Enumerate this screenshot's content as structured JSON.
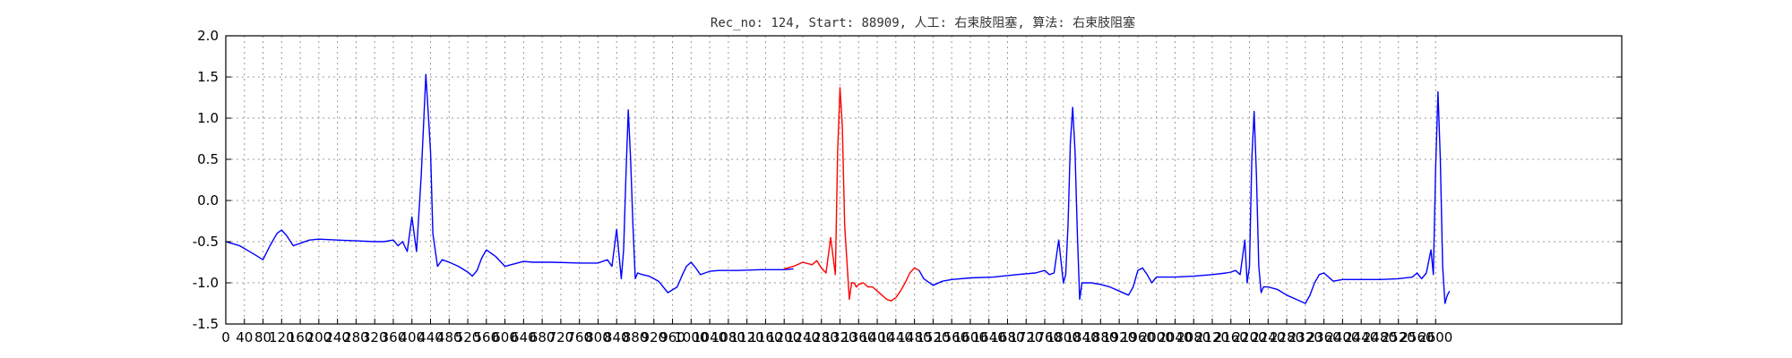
{
  "chart_data": {
    "type": "line",
    "title": "Rec_no: 124, Start: 88909, 人工: 右束肢阻塞, 算法: 右束肢阻塞",
    "xlabel": "",
    "ylabel": "",
    "xlim": [
      0,
      3000
    ],
    "ylim": [
      -1.5,
      2.0
    ],
    "grid": true,
    "yticks": [
      2.0,
      1.5,
      1.0,
      0.5,
      0.0,
      -0.5,
      -1.0,
      -1.5
    ],
    "ytick_labels": [
      "2.0",
      "1.5",
      "1.0",
      "0.5",
      "0.0",
      "-0.5",
      "-1.0",
      "-1.5"
    ],
    "xticks": [
      0,
      40,
      80,
      120,
      160,
      200,
      240,
      280,
      320,
      360,
      400,
      440,
      480,
      520,
      560,
      600,
      640,
      680,
      720,
      760,
      800,
      840,
      880,
      920,
      960,
      1000,
      1040,
      1080,
      1120,
      1160,
      1200,
      1240,
      1280,
      1320,
      1360,
      1400,
      1440,
      1480,
      1520,
      1560,
      1600,
      1640,
      1680,
      1720,
      1760,
      1800,
      1840,
      1880,
      1920,
      1960,
      2000,
      2040,
      2080,
      2120,
      2160,
      2200,
      2240,
      2280,
      2320,
      2360,
      2400,
      2440,
      2480,
      2520,
      2560,
      2600
    ],
    "xtick_labels": [
      "0",
      "40",
      "80",
      "120",
      "160",
      "200",
      "240",
      "280",
      "320",
      "360",
      "400",
      "440",
      "480",
      "520",
      "560",
      "600",
      "640",
      "680",
      "720",
      "760",
      "800",
      "840",
      "880",
      "920",
      "960",
      "1000",
      "1040",
      "1080",
      "1120",
      "1160",
      "1200",
      "1240",
      "1280",
      "1320",
      "1360",
      "1400",
      "1440",
      "1480",
      "1520",
      "1560",
      "1600",
      "1640",
      "1680",
      "1720",
      "1760",
      "1800",
      "1840",
      "1880",
      "1920",
      "1960",
      "2000",
      "2040",
      "2080",
      "2120",
      "2160",
      "2200",
      "2240",
      "2280",
      "2320",
      "2360",
      "2400",
      "2440",
      "2480",
      "2520",
      "2560",
      "2600"
    ],
    "series": [
      {
        "color": "#0000ff",
        "x": [
          0,
          30,
          60,
          80,
          95,
          110,
          120,
          130,
          145,
          160,
          180,
          200,
          240,
          280,
          320,
          340,
          360,
          370,
          380,
          390,
          400,
          410,
          420,
          430,
          440,
          445,
          455,
          465,
          480,
          500,
          520,
          530,
          540,
          550,
          560,
          580,
          600,
          620,
          640,
          660,
          700,
          760,
          800,
          820,
          830,
          840,
          850,
          855,
          860,
          865,
          870,
          875,
          880,
          885,
          895,
          910,
          930,
          950,
          970,
          980,
          990,
          1000,
          1010,
          1020,
          1030,
          1040,
          1060,
          1100,
          1150,
          1200,
          1220
        ],
        "y": [
          -0.5,
          -0.55,
          -0.65,
          -0.72,
          -0.55,
          -0.4,
          -0.36,
          -0.42,
          -0.55,
          -0.52,
          -0.48,
          -0.47,
          -0.48,
          -0.49,
          -0.5,
          -0.5,
          -0.48,
          -0.55,
          -0.5,
          -0.62,
          -0.2,
          -0.62,
          0.3,
          1.53,
          0.6,
          -0.4,
          -0.8,
          -0.72,
          -0.75,
          -0.8,
          -0.87,
          -0.92,
          -0.85,
          -0.7,
          -0.6,
          -0.68,
          -0.8,
          -0.77,
          -0.74,
          -0.75,
          -0.75,
          -0.76,
          -0.76,
          -0.72,
          -0.8,
          -0.35,
          -0.95,
          -0.6,
          0.3,
          1.1,
          0.5,
          -0.3,
          -0.95,
          -0.88,
          -0.9,
          -0.92,
          -0.98,
          -1.12,
          -1.05,
          -0.92,
          -0.8,
          -0.75,
          -0.82,
          -0.9,
          -0.88,
          -0.86,
          -0.85,
          -0.85,
          -0.84,
          -0.84,
          -0.83
        ]
      },
      {
        "color": "#ff0000",
        "x": [
          1200,
          1220,
          1240,
          1260,
          1270,
          1280,
          1290,
          1300,
          1310,
          1315,
          1320,
          1325,
          1330,
          1340,
          1345,
          1350,
          1355,
          1360,
          1370,
          1380,
          1390,
          1400,
          1410,
          1420,
          1430,
          1440,
          1450,
          1460,
          1470,
          1480,
          1490
        ],
        "y": [
          -0.83,
          -0.8,
          -0.75,
          -0.78,
          -0.73,
          -0.82,
          -0.88,
          -0.45,
          -0.9,
          0.6,
          1.37,
          0.9,
          -0.3,
          -1.2,
          -1.0,
          -1.0,
          -1.05,
          -1.02,
          -1.0,
          -1.05,
          -1.05,
          -1.1,
          -1.15,
          -1.2,
          -1.22,
          -1.18,
          -1.1,
          -1.0,
          -0.88,
          -0.82,
          -0.85
        ]
      },
      {
        "color": "#0000ff",
        "x": [
          1490,
          1500,
          1520,
          1540,
          1560,
          1600,
          1650,
          1700,
          1740,
          1760,
          1770,
          1780,
          1790,
          1800,
          1805,
          1810,
          1815,
          1820,
          1825,
          1830,
          1835,
          1840,
          1860,
          1880,
          1900,
          1920,
          1940,
          1950,
          1960,
          1970,
          1980,
          1990,
          2000,
          2040,
          2080,
          2120,
          2150,
          2160,
          2170,
          2180,
          2190,
          2195,
          2200,
          2205,
          2210,
          2215,
          2220,
          2225,
          2230,
          2240,
          2260,
          2280,
          2300,
          2320,
          2330,
          2340,
          2350,
          2360,
          2380,
          2400,
          2440,
          2480,
          2520,
          2550,
          2560,
          2570,
          2580,
          2590,
          2595,
          2600,
          2605,
          2610,
          2615,
          2620,
          2625,
          2630
        ],
        "y": [
          -0.85,
          -0.95,
          -1.03,
          -0.98,
          -0.96,
          -0.94,
          -0.93,
          -0.9,
          -0.88,
          -0.85,
          -0.9,
          -0.88,
          -0.48,
          -1.0,
          -0.9,
          -0.3,
          0.7,
          1.13,
          0.6,
          -0.4,
          -1.2,
          -1.0,
          -1.0,
          -1.02,
          -1.05,
          -1.1,
          -1.15,
          -1.05,
          -0.85,
          -0.82,
          -0.9,
          -1.0,
          -0.93,
          -0.93,
          -0.92,
          -0.9,
          -0.88,
          -0.87,
          -0.85,
          -0.9,
          -0.48,
          -1.0,
          -0.8,
          0.5,
          1.08,
          0.3,
          -0.8,
          -1.12,
          -1.05,
          -1.05,
          -1.08,
          -1.15,
          -1.2,
          -1.25,
          -1.15,
          -1.0,
          -0.9,
          -0.88,
          -0.98,
          -0.96,
          -0.96,
          -0.96,
          -0.95,
          -0.93,
          -0.88,
          -0.95,
          -0.88,
          -0.6,
          -0.9,
          0.4,
          1.32,
          0.5,
          -0.8,
          -1.25,
          -1.15,
          -1.1
        ]
      }
    ]
  }
}
